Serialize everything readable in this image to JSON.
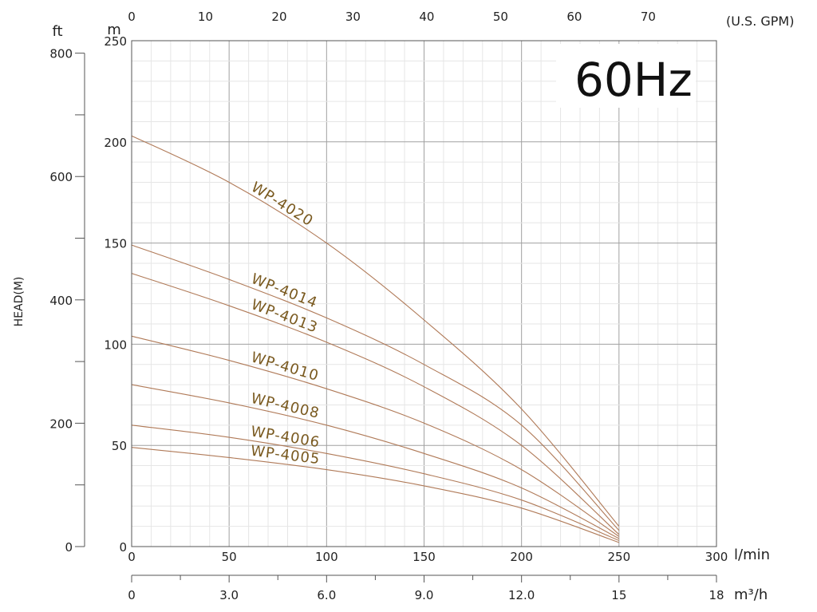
{
  "chart_data": {
    "type": "line",
    "title": "60Hz",
    "ylabel": "HEAD(M)",
    "xlim": [
      0,
      300
    ],
    "ylim": [
      0,
      250
    ],
    "x_unit": "l/min",
    "y_unit": "m",
    "x_ticks": [
      "0",
      "50",
      "100",
      "150",
      "200",
      "250",
      "300"
    ],
    "y_ticks": [
      "0",
      "50",
      "100",
      "150",
      "200",
      "250"
    ],
    "secondary_top": {
      "unit": "(U.S. GPM)",
      "factor": 3.785,
      "ticks": [
        "0",
        "10",
        "20",
        "30",
        "40",
        "50",
        "60",
        "70"
      ]
    },
    "secondary_bottom": {
      "unit": "m³/h",
      "ticks": [
        [
          "0",
          0
        ],
        [
          "3.0",
          50
        ],
        [
          "6.0",
          100
        ],
        [
          "9.0",
          150
        ],
        [
          "12.0",
          200
        ],
        [
          "15",
          250
        ],
        [
          "18",
          300
        ]
      ]
    },
    "secondary_left": {
      "unit": "ft",
      "factor": 0.3048,
      "ticks": [
        "0",
        "200",
        "400",
        "600",
        "800"
      ]
    },
    "series": [
      {
        "name": "WP-4020",
        "x": [
          0,
          50,
          100,
          150,
          200,
          250
        ],
        "y": [
          203,
          180,
          150,
          112,
          68,
          10
        ]
      },
      {
        "name": "WP-4014",
        "x": [
          0,
          50,
          100,
          150,
          200,
          250
        ],
        "y": [
          149,
          132,
          113,
          90,
          60,
          8
        ]
      },
      {
        "name": "WP-4013",
        "x": [
          0,
          50,
          100,
          150,
          200,
          250
        ],
        "y": [
          135,
          119,
          101,
          79,
          50,
          6
        ]
      },
      {
        "name": "WP-4010",
        "x": [
          0,
          50,
          100,
          150,
          200,
          250
        ],
        "y": [
          104,
          92,
          78,
          61,
          38,
          5
        ]
      },
      {
        "name": "WP-4008",
        "x": [
          0,
          50,
          100,
          150,
          200,
          250
        ],
        "y": [
          80,
          71,
          60,
          46,
          29,
          4
        ]
      },
      {
        "name": "WP-4006",
        "x": [
          0,
          50,
          100,
          150,
          200,
          250
        ],
        "y": [
          60,
          54,
          46,
          36,
          23,
          3
        ]
      },
      {
        "name": "WP-4005",
        "x": [
          0,
          50,
          100,
          150,
          200,
          250
        ],
        "y": [
          49,
          44,
          38,
          30,
          19,
          2
        ]
      }
    ],
    "grid": true,
    "line_color": "#b07a58",
    "label_color": "#7a5a20"
  }
}
